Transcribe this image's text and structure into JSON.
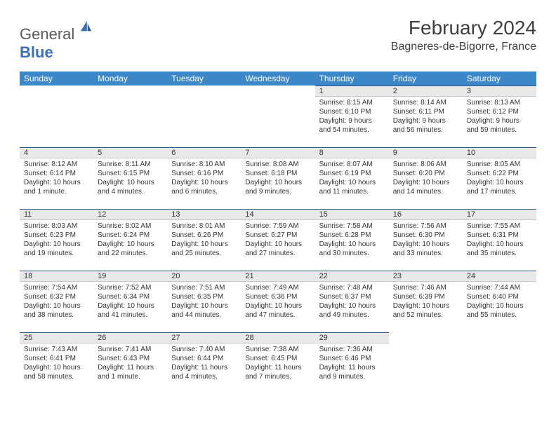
{
  "logo": {
    "textA": "General",
    "textB": "Blue"
  },
  "title": "February 2024",
  "location": "Bagneres-de-Bigorre, France",
  "colors": {
    "header_bg": "#3b87c8",
    "header_fg": "#ffffff",
    "daynum_bg": "#e8e8e8",
    "rule": "#2e5a8a",
    "text": "#333333",
    "logo_gray": "#5a5a5a",
    "logo_blue": "#3b6fb6"
  },
  "weekday_headers": [
    "Sunday",
    "Monday",
    "Tuesday",
    "Wednesday",
    "Thursday",
    "Friday",
    "Saturday"
  ],
  "weeks": [
    [
      null,
      null,
      null,
      null,
      {
        "n": "1",
        "sr": "8:15 AM",
        "ss": "6:10 PM",
        "dl": "9 hours and 54 minutes."
      },
      {
        "n": "2",
        "sr": "8:14 AM",
        "ss": "6:11 PM",
        "dl": "9 hours and 56 minutes."
      },
      {
        "n": "3",
        "sr": "8:13 AM",
        "ss": "6:12 PM",
        "dl": "9 hours and 59 minutes."
      }
    ],
    [
      {
        "n": "4",
        "sr": "8:12 AM",
        "ss": "6:14 PM",
        "dl": "10 hours and 1 minute."
      },
      {
        "n": "5",
        "sr": "8:11 AM",
        "ss": "6:15 PM",
        "dl": "10 hours and 4 minutes."
      },
      {
        "n": "6",
        "sr": "8:10 AM",
        "ss": "6:16 PM",
        "dl": "10 hours and 6 minutes."
      },
      {
        "n": "7",
        "sr": "8:08 AM",
        "ss": "6:18 PM",
        "dl": "10 hours and 9 minutes."
      },
      {
        "n": "8",
        "sr": "8:07 AM",
        "ss": "6:19 PM",
        "dl": "10 hours and 11 minutes."
      },
      {
        "n": "9",
        "sr": "8:06 AM",
        "ss": "6:20 PM",
        "dl": "10 hours and 14 minutes."
      },
      {
        "n": "10",
        "sr": "8:05 AM",
        "ss": "6:22 PM",
        "dl": "10 hours and 17 minutes."
      }
    ],
    [
      {
        "n": "11",
        "sr": "8:03 AM",
        "ss": "6:23 PM",
        "dl": "10 hours and 19 minutes."
      },
      {
        "n": "12",
        "sr": "8:02 AM",
        "ss": "6:24 PM",
        "dl": "10 hours and 22 minutes."
      },
      {
        "n": "13",
        "sr": "8:01 AM",
        "ss": "6:26 PM",
        "dl": "10 hours and 25 minutes."
      },
      {
        "n": "14",
        "sr": "7:59 AM",
        "ss": "6:27 PM",
        "dl": "10 hours and 27 minutes."
      },
      {
        "n": "15",
        "sr": "7:58 AM",
        "ss": "6:28 PM",
        "dl": "10 hours and 30 minutes."
      },
      {
        "n": "16",
        "sr": "7:56 AM",
        "ss": "6:30 PM",
        "dl": "10 hours and 33 minutes."
      },
      {
        "n": "17",
        "sr": "7:55 AM",
        "ss": "6:31 PM",
        "dl": "10 hours and 35 minutes."
      }
    ],
    [
      {
        "n": "18",
        "sr": "7:54 AM",
        "ss": "6:32 PM",
        "dl": "10 hours and 38 minutes."
      },
      {
        "n": "19",
        "sr": "7:52 AM",
        "ss": "6:34 PM",
        "dl": "10 hours and 41 minutes."
      },
      {
        "n": "20",
        "sr": "7:51 AM",
        "ss": "6:35 PM",
        "dl": "10 hours and 44 minutes."
      },
      {
        "n": "21",
        "sr": "7:49 AM",
        "ss": "6:36 PM",
        "dl": "10 hours and 47 minutes."
      },
      {
        "n": "22",
        "sr": "7:48 AM",
        "ss": "6:37 PM",
        "dl": "10 hours and 49 minutes."
      },
      {
        "n": "23",
        "sr": "7:46 AM",
        "ss": "6:39 PM",
        "dl": "10 hours and 52 minutes."
      },
      {
        "n": "24",
        "sr": "7:44 AM",
        "ss": "6:40 PM",
        "dl": "10 hours and 55 minutes."
      }
    ],
    [
      {
        "n": "25",
        "sr": "7:43 AM",
        "ss": "6:41 PM",
        "dl": "10 hours and 58 minutes."
      },
      {
        "n": "26",
        "sr": "7:41 AM",
        "ss": "6:43 PM",
        "dl": "11 hours and 1 minute."
      },
      {
        "n": "27",
        "sr": "7:40 AM",
        "ss": "6:44 PM",
        "dl": "11 hours and 4 minutes."
      },
      {
        "n": "28",
        "sr": "7:38 AM",
        "ss": "6:45 PM",
        "dl": "11 hours and 7 minutes."
      },
      {
        "n": "29",
        "sr": "7:36 AM",
        "ss": "6:46 PM",
        "dl": "11 hours and 9 minutes."
      },
      null,
      null
    ]
  ],
  "labels": {
    "sunrise": "Sunrise: ",
    "sunset": "Sunset: ",
    "daylight": "Daylight: "
  }
}
